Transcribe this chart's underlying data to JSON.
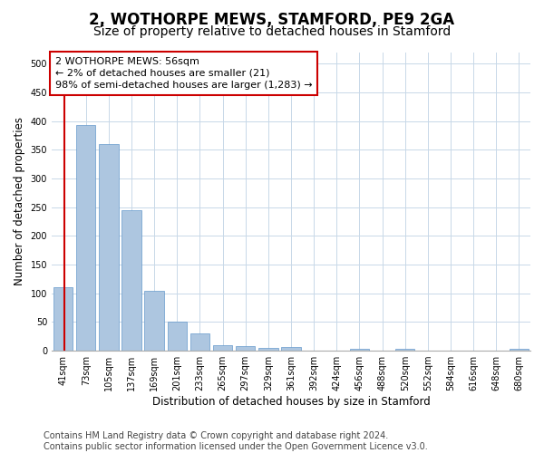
{
  "title": "2, WOTHORPE MEWS, STAMFORD, PE9 2GA",
  "subtitle": "Size of property relative to detached houses in Stamford",
  "xlabel": "Distribution of detached houses by size in Stamford",
  "ylabel": "Number of detached properties",
  "bar_labels": [
    "41sqm",
    "73sqm",
    "105sqm",
    "137sqm",
    "169sqm",
    "201sqm",
    "233sqm",
    "265sqm",
    "297sqm",
    "329sqm",
    "361sqm",
    "392sqm",
    "424sqm",
    "456sqm",
    "488sqm",
    "520sqm",
    "552sqm",
    "584sqm",
    "616sqm",
    "648sqm",
    "680sqm"
  ],
  "bar_values": [
    110,
    393,
    360,
    244,
    104,
    50,
    30,
    10,
    8,
    5,
    7,
    0,
    0,
    4,
    0,
    3,
    0,
    0,
    0,
    0,
    4
  ],
  "bar_color": "#adc6e0",
  "bar_edge_color": "#6699cc",
  "highlight_color": "#cc0000",
  "annotation_text": "2 WOTHORPE MEWS: 56sqm\n← 2% of detached houses are smaller (21)\n98% of semi-detached houses are larger (1,283) →",
  "annotation_box_color": "#ffffff",
  "annotation_box_edge_color": "#cc0000",
  "ylim": [
    0,
    520
  ],
  "yticks": [
    0,
    50,
    100,
    150,
    200,
    250,
    300,
    350,
    400,
    450,
    500
  ],
  "footer_line1": "Contains HM Land Registry data © Crown copyright and database right 2024.",
  "footer_line2": "Contains public sector information licensed under the Open Government Licence v3.0.",
  "bg_color": "#ffffff",
  "grid_color": "#c8d8e8",
  "title_fontsize": 12,
  "subtitle_fontsize": 10,
  "axis_label_fontsize": 8.5,
  "tick_fontsize": 7,
  "annotation_fontsize": 8,
  "footer_fontsize": 7
}
